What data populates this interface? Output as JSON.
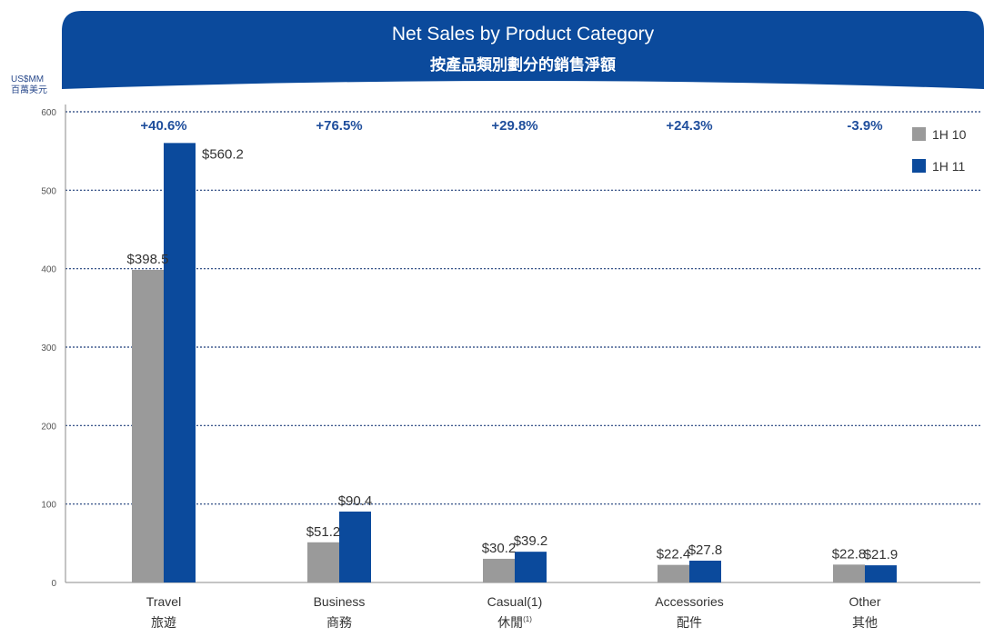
{
  "colors": {
    "banner": "#0b4a9c",
    "series_1h10": "#9a9a9a",
    "series_1h11": "#0b4a9c",
    "grid": "#1f3f7a",
    "axis": "#8a8a8a",
    "pct": "#1f4e9c"
  },
  "chart_data": {
    "type": "bar",
    "title": "Net Sales by Product Category",
    "subtitle": "按產品類別劃分的銷售淨額",
    "ylabel": "US$MM",
    "ylabel_zh": "百萬美元",
    "ylim": [
      0,
      600
    ],
    "yticks": [
      "0",
      "100",
      "200",
      "300",
      "400",
      "500",
      "600"
    ],
    "grid": "dotted horizontal",
    "legend_position": "top-right",
    "categories": [
      "Travel",
      "Business",
      "Casual(1)",
      "Accessories",
      "Other"
    ],
    "categories_zh": [
      "旅遊",
      "商務",
      "休閒",
      "配件",
      "其他"
    ],
    "category_zh_superscript": [
      "",
      "",
      "(1)",
      "",
      ""
    ],
    "growth_labels": [
      "+40.6%",
      "+76.5%",
      "+29.8%",
      "+24.3%",
      "-3.9%"
    ],
    "series": [
      {
        "name": "1H 10",
        "values": [
          398.5,
          51.2,
          30.2,
          22.4,
          22.8
        ],
        "labels": [
          "$398.5",
          "$51.2",
          "$30.2",
          "$22.4",
          "$22.8"
        ]
      },
      {
        "name": "1H 11",
        "values": [
          560.2,
          90.4,
          39.2,
          27.8,
          21.9
        ],
        "labels": [
          "$560.2",
          "$90.4",
          "$39.2",
          "$27.8",
          "$21.9"
        ]
      }
    ]
  }
}
